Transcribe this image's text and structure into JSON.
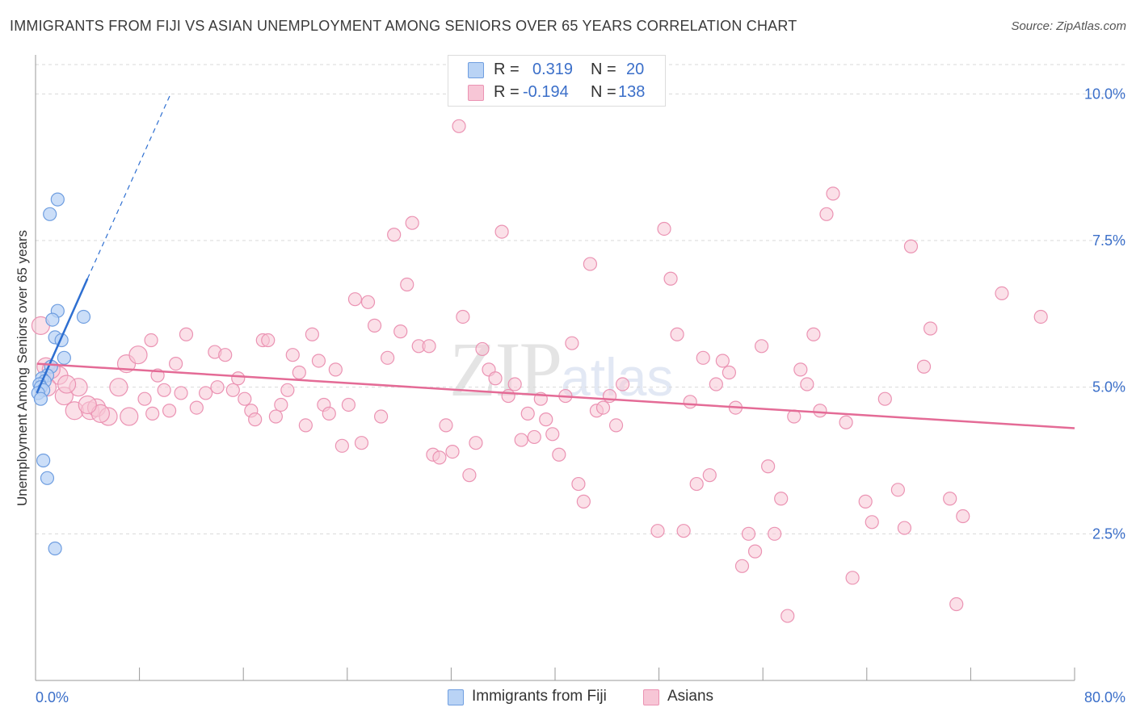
{
  "header": {
    "title": "IMMIGRANTS FROM FIJI VS ASIAN UNEMPLOYMENT AMONG SENIORS OVER 65 YEARS CORRELATION CHART",
    "source": "Source: ZipAtlas.com"
  },
  "watermark": {
    "zip": "ZIP",
    "atlas": "atlas"
  },
  "legend": {
    "fiji": {
      "r_label": "R =",
      "r_value": "0.319",
      "n_label": "N =",
      "n_value": "20"
    },
    "asians": {
      "r_label": "R =",
      "r_value": "-0.194",
      "n_label": "N =",
      "n_value": "138"
    }
  },
  "bottom_legend": {
    "fiji": "Immigrants from Fiji",
    "asians": "Asians"
  },
  "colors": {
    "fiji_fill": "#b9d3f5",
    "fiji_stroke": "#6f9ee0",
    "fiji_line": "#2e6fd1",
    "asians_fill": "#f7c6d6",
    "asians_stroke": "#eb93b3",
    "asians_line": "#e46b96",
    "tick": "#3b6fc9"
  },
  "chart_data": {
    "type": "scatter",
    "title": "IMMIGRANTS FROM FIJI VS ASIAN UNEMPLOYMENT AMONG SENIORS OVER 65 YEARS CORRELATION CHART",
    "xlabel": "",
    "ylabel": "Unemployment Among Seniors over 65 years",
    "xlim": [
      0,
      80
    ],
    "ylim": [
      0,
      10.5
    ],
    "x_tick_labels": [
      "0.0%",
      "80.0%"
    ],
    "y_ticks": [
      2.5,
      5.0,
      7.5,
      10.0
    ],
    "y_tick_labels": [
      "2.5%",
      "5.0%",
      "7.5%",
      "10.0%"
    ],
    "grid": true,
    "legend_position": "top-center",
    "series": [
      {
        "name": "Immigrants from Fiji",
        "trend": {
          "x": [
            0.1,
            4.0
          ],
          "y": [
            4.9,
            6.85
          ],
          "dashed_extension_to": [
            10.4,
            10.0
          ]
        },
        "points": [
          [
            1.7,
            8.2
          ],
          [
            1.1,
            7.95
          ],
          [
            1.7,
            6.3
          ],
          [
            3.7,
            6.2
          ],
          [
            1.3,
            6.15
          ],
          [
            1.5,
            5.85
          ],
          [
            2.0,
            5.8
          ],
          [
            2.2,
            5.5
          ],
          [
            1.2,
            5.35
          ],
          [
            0.9,
            5.2
          ],
          [
            0.5,
            5.15
          ],
          [
            0.7,
            5.1
          ],
          [
            0.3,
            5.05
          ],
          [
            0.4,
            5.0
          ],
          [
            0.6,
            4.95
          ],
          [
            0.2,
            4.9
          ],
          [
            0.4,
            4.8
          ],
          [
            0.6,
            3.75
          ],
          [
            0.9,
            3.45
          ],
          [
            1.5,
            2.25
          ]
        ]
      },
      {
        "name": "Asians",
        "trend": {
          "x": [
            0.1,
            80.0
          ],
          "y": [
            5.4,
            4.3
          ]
        },
        "points": [
          [
            32.6,
            9.45
          ],
          [
            0.4,
            6.05
          ],
          [
            0.8,
            5.35
          ],
          [
            1.8,
            5.2
          ],
          [
            2.2,
            4.85
          ],
          [
            3.0,
            4.6
          ],
          [
            3.3,
            5.0
          ],
          [
            4.2,
            4.6
          ],
          [
            4.7,
            4.65
          ],
          [
            5.6,
            4.5
          ],
          [
            6.4,
            5.0
          ],
          [
            7.2,
            4.5
          ],
          [
            7.0,
            5.4
          ],
          [
            7.9,
            5.55
          ],
          [
            8.4,
            4.8
          ],
          [
            8.9,
            5.8
          ],
          [
            9.4,
            5.2
          ],
          [
            9.9,
            4.95
          ],
          [
            10.3,
            4.6
          ],
          [
            10.8,
            5.4
          ],
          [
            11.2,
            4.9
          ],
          [
            11.6,
            5.9
          ],
          [
            12.4,
            4.65
          ],
          [
            13.1,
            4.9
          ],
          [
            13.8,
            5.6
          ],
          [
            14.6,
            5.55
          ],
          [
            15.2,
            4.95
          ],
          [
            15.6,
            5.15
          ],
          [
            16.1,
            4.8
          ],
          [
            16.6,
            4.6
          ],
          [
            16.9,
            4.45
          ],
          [
            17.5,
            5.8
          ],
          [
            17.9,
            5.8
          ],
          [
            18.5,
            4.5
          ],
          [
            18.9,
            4.7
          ],
          [
            19.4,
            4.95
          ],
          [
            19.8,
            5.55
          ],
          [
            20.3,
            5.25
          ],
          [
            20.8,
            4.35
          ],
          [
            21.3,
            5.9
          ],
          [
            21.8,
            5.45
          ],
          [
            22.2,
            4.7
          ],
          [
            22.6,
            4.55
          ],
          [
            23.1,
            5.3
          ],
          [
            23.6,
            4.0
          ],
          [
            24.1,
            4.7
          ],
          [
            24.6,
            6.5
          ],
          [
            25.1,
            4.05
          ],
          [
            25.6,
            6.45
          ],
          [
            26.1,
            6.05
          ],
          [
            26.6,
            4.5
          ],
          [
            27.1,
            5.5
          ],
          [
            27.6,
            7.6
          ],
          [
            28.1,
            5.95
          ],
          [
            28.6,
            6.75
          ],
          [
            29.0,
            7.8
          ],
          [
            29.5,
            5.7
          ],
          [
            30.3,
            5.7
          ],
          [
            30.6,
            3.85
          ],
          [
            31.1,
            3.8
          ],
          [
            31.6,
            4.35
          ],
          [
            32.1,
            3.9
          ],
          [
            32.9,
            6.2
          ],
          [
            33.4,
            3.5
          ],
          [
            33.9,
            4.05
          ],
          [
            34.4,
            5.65
          ],
          [
            34.9,
            5.3
          ],
          [
            35.4,
            5.15
          ],
          [
            35.9,
            7.65
          ],
          [
            36.4,
            4.85
          ],
          [
            36.9,
            5.05
          ],
          [
            37.4,
            4.1
          ],
          [
            37.9,
            4.55
          ],
          [
            38.4,
            4.15
          ],
          [
            38.9,
            4.8
          ],
          [
            39.3,
            4.45
          ],
          [
            39.8,
            4.2
          ],
          [
            40.3,
            3.85
          ],
          [
            40.8,
            4.85
          ],
          [
            41.3,
            5.75
          ],
          [
            41.8,
            3.35
          ],
          [
            42.2,
            3.05
          ],
          [
            42.7,
            7.1
          ],
          [
            43.2,
            4.6
          ],
          [
            43.7,
            4.65
          ],
          [
            44.2,
            4.85
          ],
          [
            44.7,
            4.35
          ],
          [
            45.2,
            5.05
          ],
          [
            47.9,
            2.55
          ],
          [
            48.4,
            7.7
          ],
          [
            48.9,
            6.85
          ],
          [
            49.4,
            5.9
          ],
          [
            49.9,
            2.55
          ],
          [
            50.4,
            4.75
          ],
          [
            50.9,
            3.35
          ],
          [
            51.4,
            5.5
          ],
          [
            51.9,
            3.5
          ],
          [
            52.4,
            5.05
          ],
          [
            52.9,
            5.45
          ],
          [
            53.4,
            5.25
          ],
          [
            53.9,
            4.65
          ],
          [
            54.4,
            1.95
          ],
          [
            54.9,
            2.5
          ],
          [
            55.4,
            2.2
          ],
          [
            55.9,
            5.7
          ],
          [
            56.4,
            3.65
          ],
          [
            56.9,
            2.5
          ],
          [
            57.4,
            3.1
          ],
          [
            57.9,
            1.1
          ],
          [
            58.4,
            4.5
          ],
          [
            58.9,
            5.3
          ],
          [
            59.4,
            5.05
          ],
          [
            59.9,
            5.9
          ],
          [
            60.4,
            4.6
          ],
          [
            60.9,
            7.95
          ],
          [
            61.4,
            8.3
          ],
          [
            62.4,
            4.4
          ],
          [
            62.9,
            1.75
          ],
          [
            63.9,
            3.05
          ],
          [
            64.4,
            2.7
          ],
          [
            65.4,
            4.8
          ],
          [
            66.4,
            3.25
          ],
          [
            66.9,
            2.6
          ],
          [
            67.4,
            7.4
          ],
          [
            68.9,
            6.0
          ],
          [
            68.4,
            5.35
          ],
          [
            70.4,
            3.1
          ],
          [
            70.9,
            1.3
          ],
          [
            71.4,
            2.8
          ],
          [
            74.4,
            6.6
          ],
          [
            77.4,
            6.2
          ],
          [
            5.0,
            4.55
          ],
          [
            2.4,
            5.05
          ],
          [
            1.2,
            5.3
          ],
          [
            9.0,
            4.55
          ],
          [
            4.0,
            4.7
          ],
          [
            14.0,
            5.0
          ],
          [
            0.9,
            5.0
          ]
        ]
      }
    ]
  }
}
